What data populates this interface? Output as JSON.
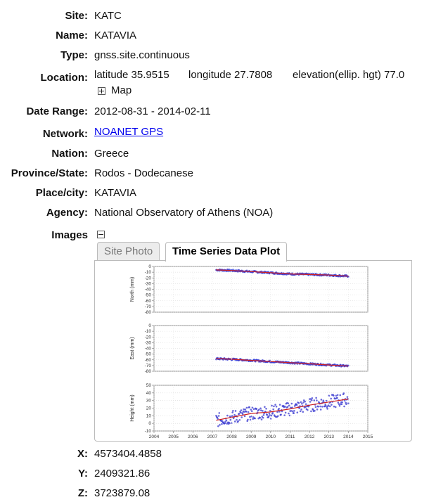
{
  "fields": {
    "site": {
      "label": "Site:",
      "value": "KATC"
    },
    "name": {
      "label": "Name:",
      "value": "KATAVIA"
    },
    "type": {
      "label": "Type:",
      "value": "gnss.site.continuous"
    },
    "location": {
      "label": "Location:",
      "latitude": "latitude 35.9515",
      "longitude": "longitude 27.7808",
      "elevation": "elevation(ellip. hgt) 77.0",
      "map_label": "Map"
    },
    "date_range": {
      "label": "Date Range:",
      "value": "2012-08-31 - 2014-02-11"
    },
    "network": {
      "label": "Network:",
      "value": "NOANET GPS"
    },
    "nation": {
      "label": "Nation:",
      "value": "Greece"
    },
    "province": {
      "label": "Province/State:",
      "value": "Rodos - Dodecanese"
    },
    "place": {
      "label": "Place/city:",
      "value": "KATAVIA"
    },
    "agency": {
      "label": "Agency:",
      "value": "National Observatory of Athens (NOA)"
    },
    "images": {
      "label": "Images"
    }
  },
  "tabs": {
    "site_photo": "Site Photo",
    "time_series": "Time Series Data Plot"
  },
  "coords": {
    "x": {
      "label": "X:",
      "value": "4573404.4858"
    },
    "y": {
      "label": "Y:",
      "value": "2409321.86"
    },
    "z": {
      "label": "Z:",
      "value": "3723879.08"
    }
  },
  "colors": {
    "points": "#3a3ad0",
    "fit": "#d02020"
  },
  "chart_data": [
    {
      "type": "scatter",
      "ylabel": "North (mm)",
      "ylim": [
        -80,
        0
      ],
      "yticks": [
        "0",
        "-10",
        "-20",
        "-30",
        "-40",
        "-50",
        "-60",
        "-70",
        "-80"
      ],
      "xlim": [
        2004,
        2015
      ],
      "series": [
        {
          "x": [
            2007.2,
            2008,
            2009,
            2010,
            2011,
            2012,
            2013,
            2014
          ],
          "y": [
            -6,
            -7,
            -9,
            -11,
            -13,
            -14,
            -15,
            -17
          ]
        }
      ]
    },
    {
      "type": "scatter",
      "ylabel": "East (mm)",
      "ylim": [
        -80,
        0
      ],
      "yticks": [
        "0",
        "-10",
        "-20",
        "-30",
        "-40",
        "-50",
        "-60",
        "-70",
        "-80"
      ],
      "xlim": [
        2004,
        2015
      ],
      "series": [
        {
          "x": [
            2007.2,
            2008,
            2009,
            2010,
            2011,
            2012,
            2013,
            2014
          ],
          "y": [
            -58,
            -59,
            -61,
            -63,
            -65,
            -67,
            -69,
            -71
          ]
        }
      ]
    },
    {
      "type": "scatter",
      "ylabel": "Height (mm)",
      "ylim": [
        -10,
        50
      ],
      "yticks": [
        "50",
        "40",
        "30",
        "20",
        "10",
        "0",
        "-10"
      ],
      "xlim": [
        2004,
        2015
      ],
      "xticks": [
        "2004",
        "2005",
        "2006",
        "2007",
        "2008",
        "2009",
        "2010",
        "2011",
        "2012",
        "2013",
        "2014",
        "2015"
      ],
      "series": [
        {
          "x": [
            2007.2,
            2008,
            2009,
            2010,
            2011,
            2012,
            2013,
            2014
          ],
          "y": [
            4,
            8,
            13,
            15,
            19,
            24,
            28,
            32
          ]
        }
      ]
    }
  ]
}
